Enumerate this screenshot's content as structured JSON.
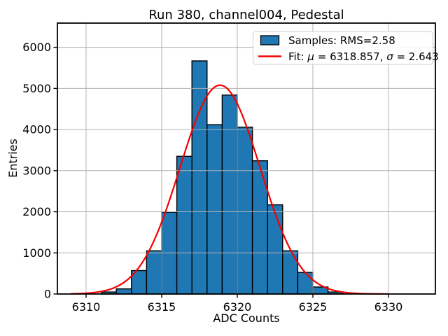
{
  "window": {
    "background": "#ffffff"
  },
  "chart_data": {
    "type": "histogram",
    "title": "Run 380, channel004, Pedestal",
    "xlabel": "ADC Counts",
    "ylabel": "Entries",
    "xlim": [
      6308.1,
      6333.1
    ],
    "ylim": [
      0,
      6590
    ],
    "xticks": [
      6310,
      6315,
      6320,
      6325,
      6330
    ],
    "yticks": [
      0,
      1000,
      2000,
      3000,
      4000,
      5000,
      6000
    ],
    "grid": true,
    "grid_color": "#b0b0b0",
    "bar_color": "#1f77b4",
    "bar_edge_color": "#000000",
    "rms": 2.58,
    "bins": {
      "width": 1,
      "left_edges": [
        6311,
        6312,
        6313,
        6314,
        6315,
        6316,
        6317,
        6318,
        6319,
        6320,
        6321,
        6322,
        6323,
        6324,
        6325,
        6326
      ],
      "counts": [
        50,
        125,
        570,
        1050,
        1990,
        3350,
        5670,
        4120,
        4840,
        4060,
        3240,
        2170,
        1050,
        525,
        170,
        50
      ]
    },
    "fit_curve": {
      "type": "gaussian",
      "mu": 6318.857,
      "sigma": 2.643,
      "peak": 5080,
      "x_start": 6309,
      "x_end": 6330,
      "color": "#f40000",
      "line_width": 2.2
    },
    "legend": {
      "position": "upper right",
      "samples_label": "Samples: RMS=2.58",
      "fit_label": "Fit: μ = 6318.857, σ = 2.643",
      "fit_label_parts": [
        [
          "Fit: ",
          false
        ],
        [
          "μ",
          true
        ],
        [
          " = 6318.857, ",
          false
        ],
        [
          "σ",
          true
        ],
        [
          " = 2.643",
          false
        ]
      ]
    }
  }
}
